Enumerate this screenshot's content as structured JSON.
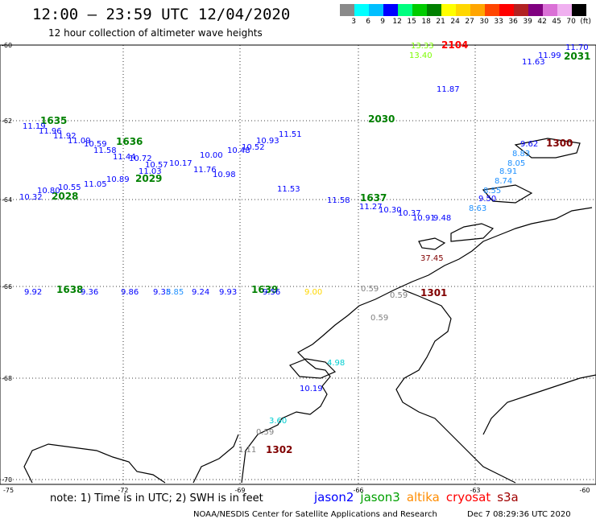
{
  "header": {
    "title": "12:00 – 23:59 UTC 12/04/2020",
    "subtitle": "12 hour collection of altimeter wave heights"
  },
  "colorbar": {
    "colors": [
      "#8a8a8a",
      "#00ffff",
      "#00bfff",
      "#0000ff",
      "#00ff7f",
      "#00cc00",
      "#008000",
      "#ffff00",
      "#ffd700",
      "#ffa500",
      "#ff4500",
      "#ff0000",
      "#b22222",
      "#800080",
      "#da70d6",
      "#f0b0f0",
      "#000000"
    ],
    "labels": [
      "3",
      "6",
      "9",
      "12",
      "15",
      "18",
      "21",
      "24",
      "27",
      "30",
      "33",
      "36",
      "39",
      "42",
      "45",
      "70",
      "(ft)"
    ]
  },
  "axes": {
    "lat_labels": [
      "-60",
      "-62",
      "-64",
      "-66",
      "-68",
      "-70"
    ],
    "lon_labels": [
      "-75",
      "-72",
      "-69",
      "-66",
      "-63",
      "-60"
    ]
  },
  "times": [
    {
      "text": "2104",
      "color": "#ff0000"
    },
    {
      "text": "2031",
      "color": "#008000"
    },
    {
      "text": "2030",
      "color": "#008000"
    },
    {
      "text": "1635",
      "color": "#008000"
    },
    {
      "text": "1636",
      "color": "#008000"
    },
    {
      "text": "2029",
      "color": "#008000"
    },
    {
      "text": "2028",
      "color": "#008000"
    },
    {
      "text": "1637",
      "color": "#008000"
    },
    {
      "text": "1638",
      "color": "#008000"
    },
    {
      "text": "1639",
      "color": "#008000"
    },
    {
      "text": "1300",
      "color": "#800000"
    },
    {
      "text": "1301",
      "color": "#800000"
    },
    {
      "text": "1302",
      "color": "#800000"
    }
  ],
  "wave_labels": [
    {
      "text": "13.33",
      "color": "#7cfc00"
    },
    {
      "text": "13.40",
      "color": "#7cfc00"
    },
    {
      "text": "11.70",
      "color": "#0000ff"
    },
    {
      "text": "11.99",
      "color": "#0000ff"
    },
    {
      "text": "11.63",
      "color": "#0000ff"
    },
    {
      "text": "11.87",
      "color": "#0000ff"
    },
    {
      "text": "11.19",
      "color": "#0000ff"
    },
    {
      "text": "11.96",
      "color": "#0000ff"
    },
    {
      "text": "11.92",
      "color": "#0000ff"
    },
    {
      "text": "11.09",
      "color": "#0000ff"
    },
    {
      "text": "10.59",
      "color": "#0000ff"
    },
    {
      "text": "11.58",
      "color": "#0000ff"
    },
    {
      "text": "11.44",
      "color": "#0000ff"
    },
    {
      "text": "10.72",
      "color": "#0000ff"
    },
    {
      "text": "10.57",
      "color": "#0000ff"
    },
    {
      "text": "10.17",
      "color": "#0000ff"
    },
    {
      "text": "10.00",
      "color": "#0000ff"
    },
    {
      "text": "10.48",
      "color": "#0000ff"
    },
    {
      "text": "10.52",
      "color": "#0000ff"
    },
    {
      "text": "10.93",
      "color": "#0000ff"
    },
    {
      "text": "11.51",
      "color": "#0000ff"
    },
    {
      "text": "11.76",
      "color": "#0000ff"
    },
    {
      "text": "10.98",
      "color": "#0000ff"
    },
    {
      "text": "11.03",
      "color": "#0000ff"
    },
    {
      "text": "10.89",
      "color": "#0000ff"
    },
    {
      "text": "11.05",
      "color": "#0000ff"
    },
    {
      "text": "10.55",
      "color": "#0000ff"
    },
    {
      "text": "10.80",
      "color": "#0000ff"
    },
    {
      "text": "10.32",
      "color": "#0000ff"
    },
    {
      "text": "11.53",
      "color": "#0000ff"
    },
    {
      "text": "11.58",
      "color": "#0000ff"
    },
    {
      "text": "11.27",
      "color": "#0000ff"
    },
    {
      "text": "10.30",
      "color": "#0000ff"
    },
    {
      "text": "10.37",
      "color": "#0000ff"
    },
    {
      "text": "10.91",
      "color": "#0000ff"
    },
    {
      "text": "9.48",
      "color": "#0000ff"
    },
    {
      "text": "9.62",
      "color": "#0000ff"
    },
    {
      "text": "8.83",
      "color": "#1e90ff"
    },
    {
      "text": "8.05",
      "color": "#1e90ff"
    },
    {
      "text": "8.91",
      "color": "#1e90ff"
    },
    {
      "text": "8.74",
      "color": "#1e90ff"
    },
    {
      "text": "8.55",
      "color": "#1e90ff"
    },
    {
      "text": "9.50",
      "color": "#0000ff"
    },
    {
      "text": "8.63",
      "color": "#1e90ff"
    },
    {
      "text": "37.45",
      "color": "#800000"
    },
    {
      "text": "3.60",
      "color": "#00ced1"
    },
    {
      "text": "0.59",
      "color": "#808080"
    },
    {
      "text": "0.59",
      "color": "#808080"
    },
    {
      "text": "0.59",
      "color": "#808080"
    },
    {
      "text": "0.59",
      "color": "#808080"
    },
    {
      "text": "10.19",
      "color": "#0000ff"
    },
    {
      "text": "4.98",
      "color": "#00ced1"
    },
    {
      "text": "1.11",
      "color": "#808080"
    },
    {
      "text": "9.92",
      "color": "#0000ff"
    },
    {
      "text": "9.36",
      "color": "#0000ff"
    },
    {
      "text": "9.86",
      "color": "#0000ff"
    },
    {
      "text": "9.35",
      "color": "#0000ff"
    },
    {
      "text": "8.85",
      "color": "#1e90ff"
    },
    {
      "text": "9.24",
      "color": "#0000ff"
    },
    {
      "text": "9.93",
      "color": "#0000ff"
    },
    {
      "text": "9.56",
      "color": "#0000ff"
    },
    {
      "text": "9.00",
      "color": "#ffd700"
    }
  ],
  "legend": [
    {
      "name": "jason2",
      "color": "#0000ff"
    },
    {
      "name": "jason3",
      "color": "#00a000"
    },
    {
      "name": "altika",
      "color": "#ff8c00"
    },
    {
      "name": "cryosat",
      "color": "#ff0000"
    },
    {
      "name": "s3a",
      "color": "#a00000"
    }
  ],
  "footer": {
    "note": "note:  1) Time is in UTC;  2) SWH is in feet",
    "credit": "NOAA/NESDIS Center for Satellite Applications and Research",
    "date": "Dec  7 08:29:36 UTC 2020"
  }
}
